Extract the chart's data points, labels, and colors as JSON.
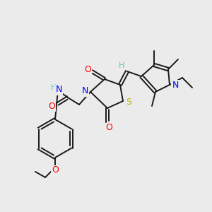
{
  "background_color": "#ebebeb",
  "atom_colors": {
    "C": "#1a1a1a",
    "H": "#4ecdc4",
    "N": "#0000ff",
    "O": "#ff0000",
    "S": "#b8b800"
  },
  "bond_color": "#1a1a1a",
  "bond_width": 1.4,
  "font_size_atom": 9,
  "font_size_small": 8
}
